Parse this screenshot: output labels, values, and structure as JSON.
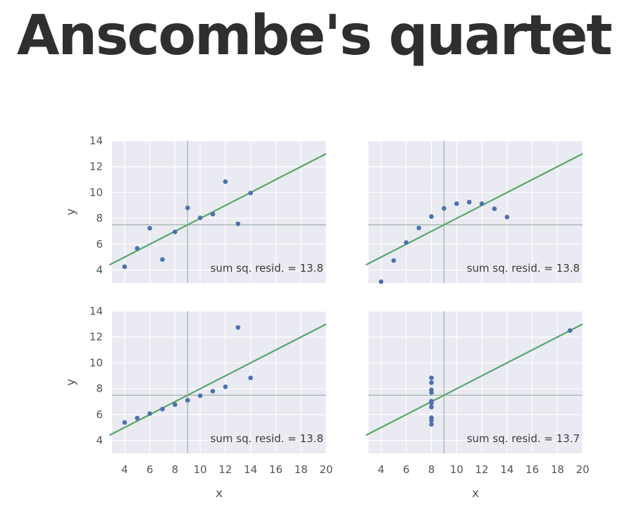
{
  "title": "Anscombe's quartet",
  "colors": {
    "panel_background": "#eaeaf2",
    "grid": "#ffffff",
    "point": "#4c72b0",
    "fit_line": "#55a868",
    "mean_line": "#8aa59a",
    "text": "#555555"
  },
  "chart_data": [
    {
      "type": "scatter",
      "panel": "top-left",
      "xlabel": "",
      "ylabel": "y",
      "xlim": [
        3,
        20
      ],
      "ylim": [
        3,
        14
      ],
      "xticks": [],
      "yticks": [
        "4",
        "6",
        "8",
        "10",
        "12",
        "14"
      ],
      "grid": true,
      "x": [
        10,
        8,
        13,
        9,
        11,
        14,
        6,
        4,
        12,
        7,
        5
      ],
      "y": [
        8.04,
        6.95,
        7.58,
        8.81,
        8.33,
        9.96,
        7.24,
        4.26,
        10.84,
        4.82,
        5.68
      ],
      "fit": {
        "intercept": 3.0,
        "slope": 0.5
      },
      "mean_x": 9,
      "mean_y": 7.5,
      "annotation": "sum sq. resid. = 13.8"
    },
    {
      "type": "scatter",
      "panel": "top-right",
      "xlabel": "",
      "ylabel": "",
      "xlim": [
        3,
        20
      ],
      "ylim": [
        3,
        14
      ],
      "xticks": [],
      "yticks": [],
      "grid": true,
      "x": [
        10,
        8,
        13,
        9,
        11,
        14,
        6,
        4,
        12,
        7,
        5
      ],
      "y": [
        9.14,
        8.14,
        8.74,
        8.77,
        9.26,
        8.1,
        6.13,
        3.1,
        9.13,
        7.26,
        4.74
      ],
      "fit": {
        "intercept": 3.0,
        "slope": 0.5
      },
      "mean_x": 9,
      "mean_y": 7.5,
      "annotation": "sum sq. resid. = 13.8"
    },
    {
      "type": "scatter",
      "panel": "bottom-left",
      "xlabel": "x",
      "ylabel": "y",
      "xlim": [
        3,
        20
      ],
      "ylim": [
        3,
        14
      ],
      "xticks": [
        "4",
        "6",
        "8",
        "10",
        "12",
        "14",
        "16",
        "18",
        "20"
      ],
      "yticks": [
        "4",
        "6",
        "8",
        "10",
        "12",
        "14"
      ],
      "grid": true,
      "x": [
        10,
        8,
        13,
        9,
        11,
        14,
        6,
        4,
        12,
        7,
        5
      ],
      "y": [
        7.46,
        6.77,
        12.74,
        7.11,
        7.81,
        8.84,
        6.08,
        5.39,
        8.15,
        6.42,
        5.73
      ],
      "fit": {
        "intercept": 3.0,
        "slope": 0.5
      },
      "mean_x": 9,
      "mean_y": 7.5,
      "annotation": "sum sq. resid. = 13.8"
    },
    {
      "type": "scatter",
      "panel": "bottom-right",
      "xlabel": "x",
      "ylabel": "",
      "xlim": [
        3,
        20
      ],
      "ylim": [
        3,
        14
      ],
      "xticks": [
        "4",
        "6",
        "8",
        "10",
        "12",
        "14",
        "16",
        "18",
        "20"
      ],
      "yticks": [],
      "grid": true,
      "x": [
        8,
        8,
        8,
        8,
        8,
        8,
        8,
        19,
        8,
        8,
        8
      ],
      "y": [
        6.58,
        5.76,
        7.71,
        8.84,
        8.47,
        7.04,
        5.25,
        12.5,
        5.56,
        7.91,
        6.89
      ],
      "fit": {
        "intercept": 3.0,
        "slope": 0.5
      },
      "mean_x": 9,
      "mean_y": 7.5,
      "annotation": "sum sq. resid. = 13.7"
    }
  ]
}
